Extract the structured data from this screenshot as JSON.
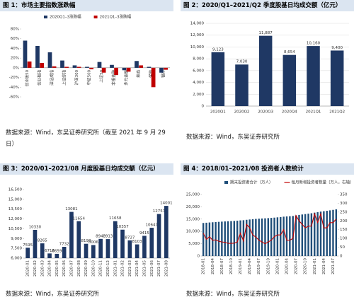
{
  "chart_data": [
    {
      "type": "bar",
      "title": "图 1：市场主要指数涨跌幅",
      "note": "数据来源：Wind，东吴证券研究所（截至 2021 年 9 月 29 日）",
      "categories": [
        "创业板50",
        "创业板指",
        "深证成指",
        "上证综指",
        "沪深300",
        "中证500",
        "上证50",
        "非银金融",
        "多元金融",
        "券商",
        "保险",
        "银行"
      ],
      "series": [
        {
          "name": "2020Q1–3涨跌幅",
          "color": "#1f3864",
          "values": [
            56,
            45,
            32,
            15,
            5,
            2,
            12,
            6,
            -5,
            14,
            2,
            -10
          ]
        },
        {
          "name": "2021Q1–3涨跌幅",
          "color": "#c00000",
          "values": [
            13,
            10,
            3,
            2,
            2,
            -3,
            -10,
            -15,
            -8,
            5,
            -40,
            -4
          ]
        }
      ],
      "ylim": [
        -60,
        80
      ],
      "yticks": [
        {
          "value": -60,
          "label": "-60%"
        },
        {
          "value": -40,
          "label": "-40%"
        },
        {
          "value": -20,
          "label": "-20%"
        },
        {
          "value": 0,
          "label": "0%"
        },
        {
          "value": 20,
          "label": "20%"
        },
        {
          "value": 40,
          "label": "40%"
        },
        {
          "value": 60,
          "label": "60%"
        },
        {
          "value": 80,
          "label": "80%"
        }
      ],
      "grid": false,
      "legend": "top"
    },
    {
      "type": "bar",
      "title": "图 2：2020/Q1–2021/Q2 季度股基日均成交额（亿元）",
      "note": "数据来源：Wind，东吴证券研究所",
      "categories": [
        "2020Q1",
        "2020Q2",
        "2020Q3",
        "2020Q4",
        "2021Q1",
        "2021Q2"
      ],
      "values": [
        9123,
        7030,
        11887,
        8654,
        10160,
        9400
      ],
      "value_labels": [
        "9,123",
        "7,030",
        "11,887",
        "8,654",
        "10,160",
        "9,400"
      ],
      "color": "#1f3864",
      "ylim": [
        0,
        14000
      ],
      "yticks": [
        0,
        {
          "value": 2000,
          "label": "2,000"
        },
        {
          "value": 4000,
          "label": "4,000"
        },
        {
          "value": 6000,
          "label": "6,000"
        },
        {
          "value": 8000,
          "label": "8,000"
        },
        {
          "value": 10000,
          "label": "10,000"
        },
        {
          "value": 12000,
          "label": "12,000"
        },
        {
          "value": 14000,
          "label": "14,000"
        }
      ],
      "grid": true
    },
    {
      "type": "bar",
      "title": "图 3：2020/01–2021/08 月度股基日均成交额（亿元）",
      "note": "数据来源：Wind，东吴证券研究所",
      "categories": [
        "2020-01",
        "2020-02",
        "2020-03",
        "2020-04",
        "2020-05",
        "2020-06",
        "2020-07",
        "2020-08",
        "2020-09",
        "2020-10",
        "2020-11",
        "2020-12",
        "2021-01",
        "2021-02",
        "2021-03",
        "2021-04",
        "2021-05",
        "2021-06",
        "2021-07",
        "2021-08"
      ],
      "values": [
        7595,
        10330,
        8265,
        6718,
        6659,
        7732,
        13081,
        11654,
        8198,
        8006,
        8943,
        8913,
        11658,
        10357,
        8727,
        8103,
        9415,
        10647,
        12757,
        14001
      ],
      "data_labels": true,
      "color": "#1f3864",
      "ylim": [
        6000,
        16500
      ],
      "yticks": [
        {
          "value": 6000,
          "label": "6,000"
        },
        {
          "value": 7500,
          "label": "7,500"
        },
        {
          "value": 9000,
          "label": "9,000"
        },
        {
          "value": 10500,
          "label": "10,500"
        },
        {
          "value": 12000,
          "label": "12,000"
        },
        {
          "value": 13500,
          "label": "13,500"
        },
        {
          "value": 15000,
          "label": "15,000"
        },
        {
          "value": 16500,
          "label": "16,500"
        }
      ],
      "grid": false
    },
    {
      "type": "bar",
      "title": "图 4：2018/01–2021/08 投资者人数统计",
      "note": "数据来源：Wind，东吴证券研究所",
      "categories": [
        "2018-01",
        null,
        null,
        "2018-04",
        null,
        null,
        "2018-07",
        null,
        null,
        "2018-10",
        null,
        null,
        "2019-01",
        null,
        null,
        "2019-04",
        null,
        null,
        "2019-07",
        null,
        null,
        "2019-10",
        null,
        null,
        "2020-01",
        null,
        null,
        "2020-04",
        null,
        null,
        "2020-07",
        null,
        null,
        "2020-10",
        null,
        null,
        "2021-01",
        null,
        null,
        "2021-04",
        null,
        null,
        "2021-07",
        null
      ],
      "series": [
        {
          "name": "期末投资者合计（万人）",
          "color": "#1f4e79",
          "values": [
            13435,
            13530,
            13627,
            13718,
            13810,
            13893,
            13975,
            14053,
            14126,
            14198,
            14270,
            14350,
            14480,
            14555,
            14720,
            14850,
            14970,
            15080,
            15170,
            15250,
            15320,
            15400,
            15490,
            15600,
            15720,
            15840,
            15990,
            16080,
            16170,
            16270,
            16500,
            16700,
            16880,
            17040,
            17210,
            17380,
            17620,
            17810,
            18050,
            18210,
            18370,
            18560,
            18750,
            18960
          ]
        },
        {
          "name": "每月新增投资者数量（万人，右轴）",
          "color": "#c00000",
          "type": "line",
          "axis": "y2",
          "values": [
            130,
            95,
            110,
            90,
            92,
            84,
            80,
            78,
            72,
            72,
            73,
            80,
            130,
            85,
            180,
            160,
            120,
            108,
            90,
            80,
            70,
            80,
            90,
            110,
            120,
            120,
            150,
            90,
            90,
            100,
            230,
            200,
            180,
            160,
            170,
            170,
            240,
            190,
            240,
            160,
            160,
            190,
            190,
            210
          ]
        }
      ],
      "ylim": [
        0,
        25000
      ],
      "yticks": [
        0,
        {
          "value": 5000,
          "label": "5,000"
        },
        {
          "value": 10000,
          "label": "10,000"
        },
        {
          "value": 15000,
          "label": "15,000"
        },
        {
          "value": 20000,
          "label": "20,000"
        },
        {
          "value": 25000,
          "label": "25,000"
        }
      ],
      "y2lim": [
        0,
        350
      ],
      "y2ticks": [
        0,
        50,
        100,
        150,
        200,
        250,
        300,
        350
      ],
      "grid": false,
      "legend": "top"
    }
  ]
}
